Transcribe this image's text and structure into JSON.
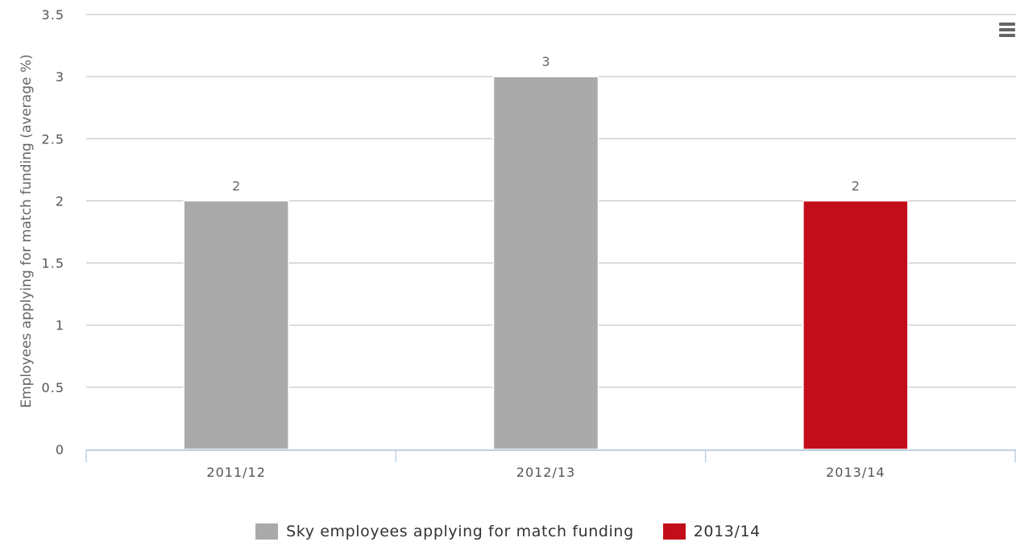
{
  "chart_data": {
    "type": "bar",
    "categories": [
      "2011/12",
      "2012/13",
      "2013/14"
    ],
    "values": [
      2,
      3,
      2
    ],
    "bar_colors": [
      "#aaaaaa",
      "#aaaaaa",
      "#c20e1a"
    ],
    "data_labels": [
      "2",
      "3",
      "2"
    ],
    "ylabel": "Employees applying for match funding (average %)",
    "ylim": [
      0,
      3.5
    ],
    "yticks": [
      0,
      0.5,
      1,
      1.5,
      2,
      2.5,
      3,
      3.5
    ],
    "ytick_labels": [
      "0",
      "0.5",
      "1",
      "1.5",
      "2",
      "2.5",
      "3",
      "3.5"
    ],
    "grid": true,
    "legend_position": "bottom-center",
    "legend": [
      {
        "label": "Sky employees applying for match funding",
        "color": "#aaaaaa"
      },
      {
        "label": "2013/14",
        "color": "#c20e1a"
      }
    ]
  },
  "menu": {
    "icon": "hamburger-menu-icon"
  }
}
